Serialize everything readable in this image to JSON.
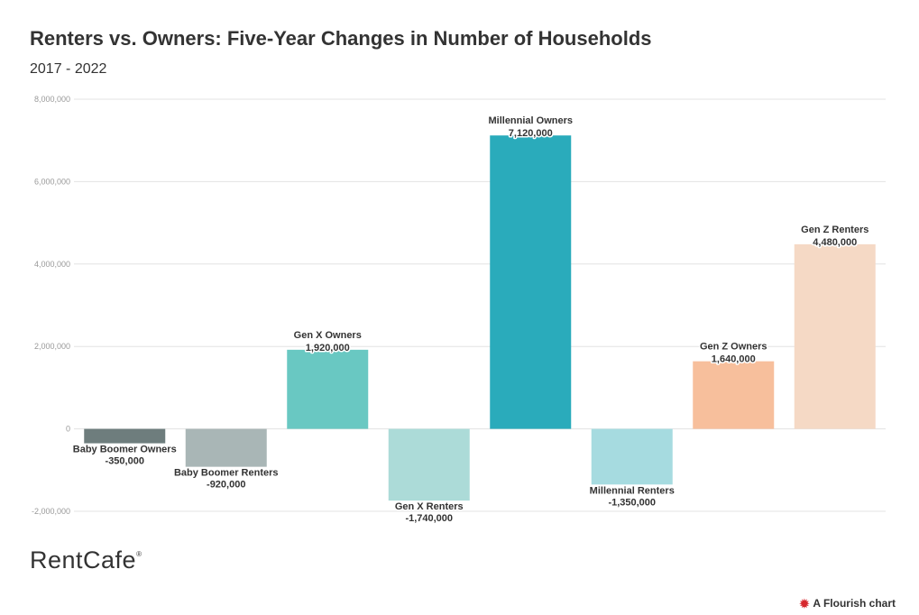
{
  "header": {
    "title": "Renters vs. Owners: Five-Year Changes in Number of Households",
    "subtitle": "2017 - 2022"
  },
  "footer": {
    "brand": "RentCafe",
    "brand_mark": "®",
    "credit": "A Flourish chart",
    "credit_icon": "flourish-logo-icon"
  },
  "colors": {
    "grid": "#e3e3e3",
    "brand_accent": "#d6282e"
  },
  "chart_data": {
    "type": "bar",
    "title": "Renters vs. Owners: Five-Year Changes in Number of Households",
    "subtitle": "2017 - 2022",
    "xlabel": "",
    "ylabel": "",
    "ylim": [
      -2000000,
      8000000
    ],
    "yticks": [
      8000000,
      6000000,
      4000000,
      2000000,
      0,
      -2000000
    ],
    "ytick_labels": [
      "8,000,000",
      "6,000,000",
      "4,000,000",
      "2,000,000",
      "0",
      "-2,000,000"
    ],
    "grid": true,
    "categories": [
      "Baby Boomer Owners",
      "Baby Boomer Renters",
      "Gen X Owners",
      "Gen X Renters",
      "Millennial Owners",
      "Millennial Renters",
      "Gen Z Owners",
      "Gen Z Renters"
    ],
    "values": [
      -350000,
      -920000,
      1920000,
      -1740000,
      7120000,
      -1350000,
      1640000,
      4480000
    ],
    "value_labels": [
      "-350,000",
      "-920,000",
      "1,920,000",
      "-1,740,000",
      "7,120,000",
      "-1,350,000",
      "1,640,000",
      "4,480,000"
    ],
    "bar_colors": [
      "#6e7d7d",
      "#a9b6b6",
      "#69c8c2",
      "#acdbd8",
      "#2aabbb",
      "#a6dbe0",
      "#f7bf9c",
      "#f5d9c5"
    ]
  }
}
